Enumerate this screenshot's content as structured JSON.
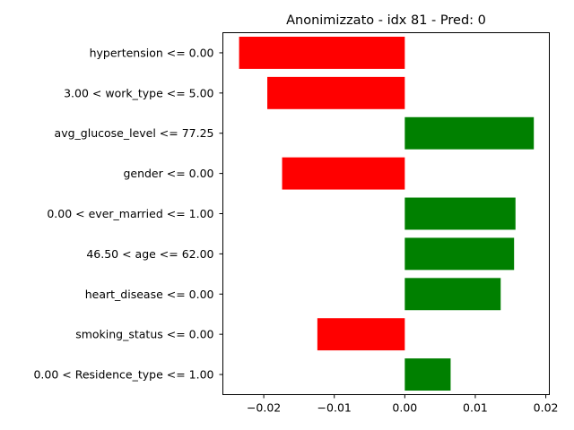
{
  "chart_data": {
    "type": "bar",
    "orientation": "horizontal",
    "title": "Anonimizzato - idx 81 - Pred: 0",
    "xlabel": "",
    "ylabel": "",
    "xlim": [
      -0.0258,
      0.0205
    ],
    "xticks": [
      -0.02,
      -0.01,
      0.0,
      0.01,
      0.02
    ],
    "xtick_labels": [
      "−0.02",
      "−0.01",
      "0.00",
      "0.01",
      "0.02"
    ],
    "grid": false,
    "legend": "none",
    "colors": {
      "negative": "#ff0000",
      "positive": "#008000"
    },
    "categories": [
      "hypertension <= 0.00",
      "3.00 < work_type <= 5.00",
      "avg_glucose_level <= 77.25",
      "gender <= 0.00",
      "0.00 < ever_married <= 1.00",
      "46.50 < age <= 62.00",
      "heart_disease <= 0.00",
      "smoking_status <= 0.00",
      "0.00 < Residence_type <= 1.00"
    ],
    "values": [
      -0.0235,
      -0.0195,
      0.0183,
      -0.0174,
      0.0157,
      0.0155,
      0.0136,
      -0.0124,
      0.0065
    ]
  }
}
